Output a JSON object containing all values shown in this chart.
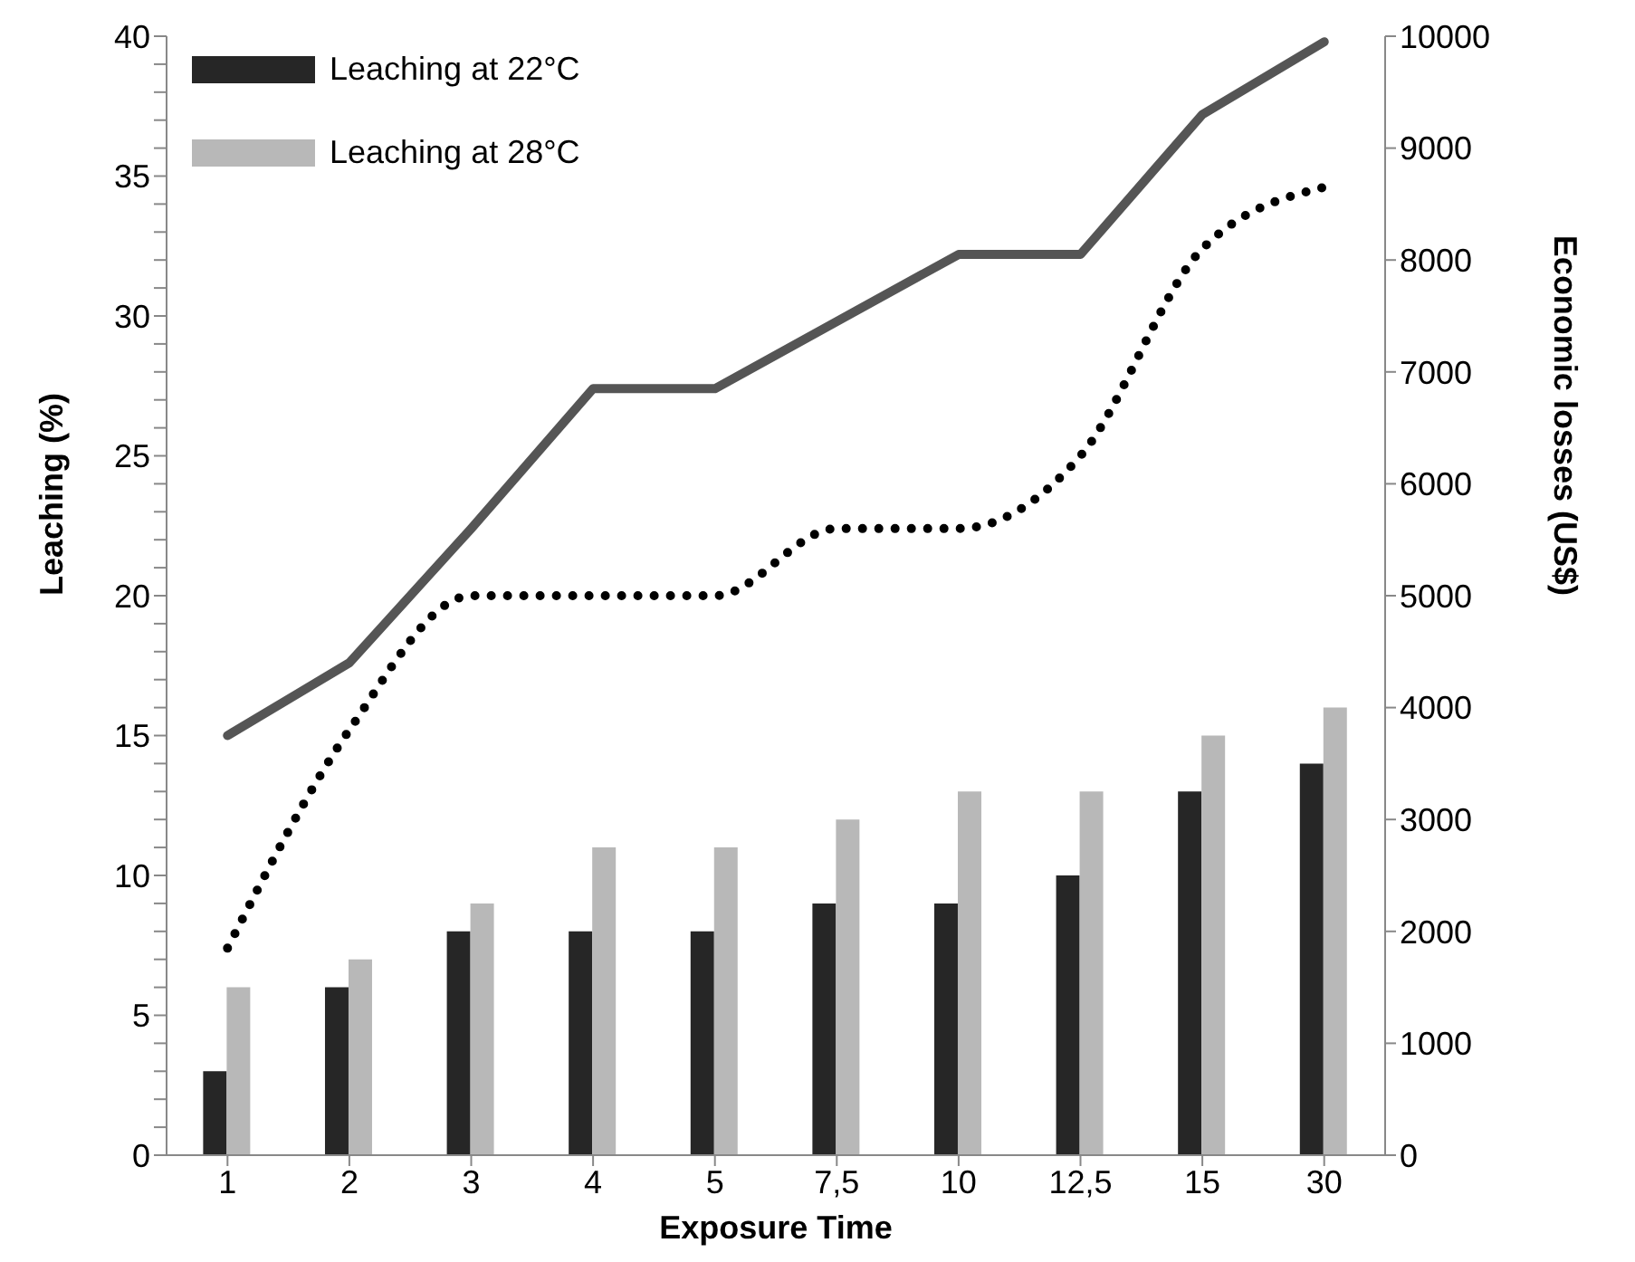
{
  "chart_data": {
    "type": "bar",
    "xlabel": "Exposure Time",
    "ylabel": "Leaching (%)",
    "y2label": "Economic losses (US$)",
    "categories": [
      "1",
      "2",
      "3",
      "4",
      "5",
      "7,5",
      "10",
      "12,5",
      "15",
      "30"
    ],
    "series": [
      {
        "name": "Leaching at 22°C",
        "color": "#262626",
        "values": [
          3,
          6,
          8,
          8,
          8,
          9,
          9,
          10,
          13,
          14
        ]
      },
      {
        "name": "Leaching at 28°C",
        "color": "#b8b8b8",
        "values": [
          6,
          7,
          9,
          11,
          11,
          12,
          13,
          13,
          15,
          16
        ]
      },
      {
        "type": "line",
        "axis": "y2",
        "color": "#555555",
        "line_style": "solid",
        "values": [
          3750,
          4400,
          5600,
          6850,
          6850,
          7450,
          8050,
          8050,
          9300,
          9950
        ]
      },
      {
        "type": "line",
        "axis": "y2",
        "color": "#000000",
        "line_style": "dotted",
        "values": [
          1850,
          3800,
          5000,
          5000,
          5000,
          5600,
          5600,
          6250,
          8100,
          8650
        ]
      }
    ],
    "ylim": [
      0,
      40
    ],
    "yticks": [
      0,
      {
        "value": 1,
        "label": null
      },
      {
        "value": 2,
        "label": null
      },
      {
        "value": 3,
        "label": null
      },
      {
        "value": 4,
        "label": null
      },
      5,
      {
        "value": 6,
        "label": null
      },
      {
        "value": 7,
        "label": null
      },
      {
        "value": 8,
        "label": null
      },
      {
        "value": 9,
        "label": null
      },
      10,
      {
        "value": 11,
        "label": null
      },
      {
        "value": 12,
        "label": null
      },
      {
        "value": 13,
        "label": null
      },
      {
        "value": 14,
        "label": null
      },
      15,
      {
        "value": 16,
        "label": null
      },
      {
        "value": 17,
        "label": null
      },
      {
        "value": 18,
        "label": null
      },
      {
        "value": 19,
        "label": null
      },
      20,
      {
        "value": 21,
        "label": null
      },
      {
        "value": 22,
        "label": null
      },
      {
        "value": 23,
        "label": null
      },
      {
        "value": 24,
        "label": null
      },
      25,
      {
        "value": 26,
        "label": null
      },
      {
        "value": 27,
        "label": null
      },
      {
        "value": 28,
        "label": null
      },
      {
        "value": 29,
        "label": null
      },
      30,
      {
        "value": 31,
        "label": null
      },
      {
        "value": 32,
        "label": null
      },
      {
        "value": 33,
        "label": null
      },
      {
        "value": 34,
        "label": null
      },
      35,
      {
        "value": 36,
        "label": null
      },
      {
        "value": 37,
        "label": null
      },
      {
        "value": 38,
        "label": null
      },
      {
        "value": 39,
        "label": null
      },
      40
    ],
    "y2lim": [
      0,
      10000
    ],
    "y2ticks": [
      0,
      1000,
      2000,
      3000,
      4000,
      5000,
      6000,
      7000,
      8000,
      9000,
      10000
    ],
    "grid": false,
    "legend": "top left",
    "marker": "none"
  }
}
